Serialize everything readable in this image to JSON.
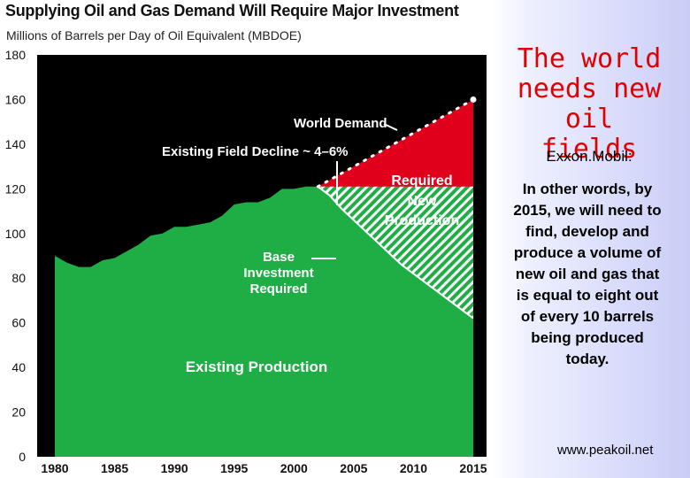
{
  "chart_data": {
    "type": "area",
    "title": "Supplying Oil and Gas Demand Will Require Major Investment",
    "subtitle": "Millions of Barrels per Day of Oil Equivalent (MBDOE)",
    "xlabel": "",
    "ylabel": "",
    "xlim": [
      1980,
      2015
    ],
    "ylim": [
      0,
      180
    ],
    "y_ticks": [
      "0",
      "20",
      "40",
      "60",
      "80",
      "100",
      "120",
      "140",
      "160",
      "180"
    ],
    "x_ticks": [
      "1980",
      "1985",
      "1990",
      "1995",
      "2000",
      "2005",
      "2010",
      "2015"
    ],
    "background": "#000000",
    "colors": {
      "existing_production": "#1fae45",
      "required_new": "#e0001b",
      "demand_dots": "#ffffff",
      "decline_line": "#ffffff"
    },
    "series": [
      {
        "key": "existing_production",
        "x": [
          1980,
          1981,
          1982,
          1983,
          1984,
          1985,
          1986,
          1987,
          1988,
          1989,
          1990,
          1991,
          1992,
          1993,
          1994,
          1995,
          1996,
          1997,
          1998,
          1999,
          2000,
          2001,
          2002
        ],
        "values": [
          90,
          87,
          85,
          85,
          88,
          89,
          92,
          95,
          99,
          100,
          103,
          103,
          104,
          105,
          108,
          113,
          114,
          114,
          116,
          120,
          120,
          121,
          121
        ]
      },
      {
        "key": "existing_field_decline",
        "x": [
          2002,
          2003,
          2004,
          2005,
          2006,
          2007,
          2008,
          2009,
          2010,
          2011,
          2012,
          2013,
          2014,
          2015
        ],
        "values": [
          121,
          117,
          111,
          106,
          101,
          96,
          91,
          86,
          82,
          78,
          74,
          70,
          66,
          62
        ]
      },
      {
        "key": "world_demand",
        "x": [
          2002,
          2015
        ],
        "values": [
          121,
          160
        ]
      }
    ],
    "annotations": {
      "world_demand": "World Demand",
      "field_decline": "Existing Field Decline ~ 4–6%",
      "required_new_line1": "Required",
      "required_new_line2": "New",
      "required_new_line3": "Production",
      "base_line1": "Base",
      "base_line2": "Investment",
      "base_line3": "Required",
      "existing_production": "Existing Production"
    }
  },
  "side": {
    "heading_line1": "The world",
    "heading_line2": "needs new oil",
    "heading_line3": "fields",
    "brand": "Exxon.Mobil:",
    "body": "In other words, by 2015, we will need to find, develop and produce a volume of new oil and gas that is equal to eight out of every 10 barrels being produced today.",
    "link": "www.peakoil.net"
  }
}
